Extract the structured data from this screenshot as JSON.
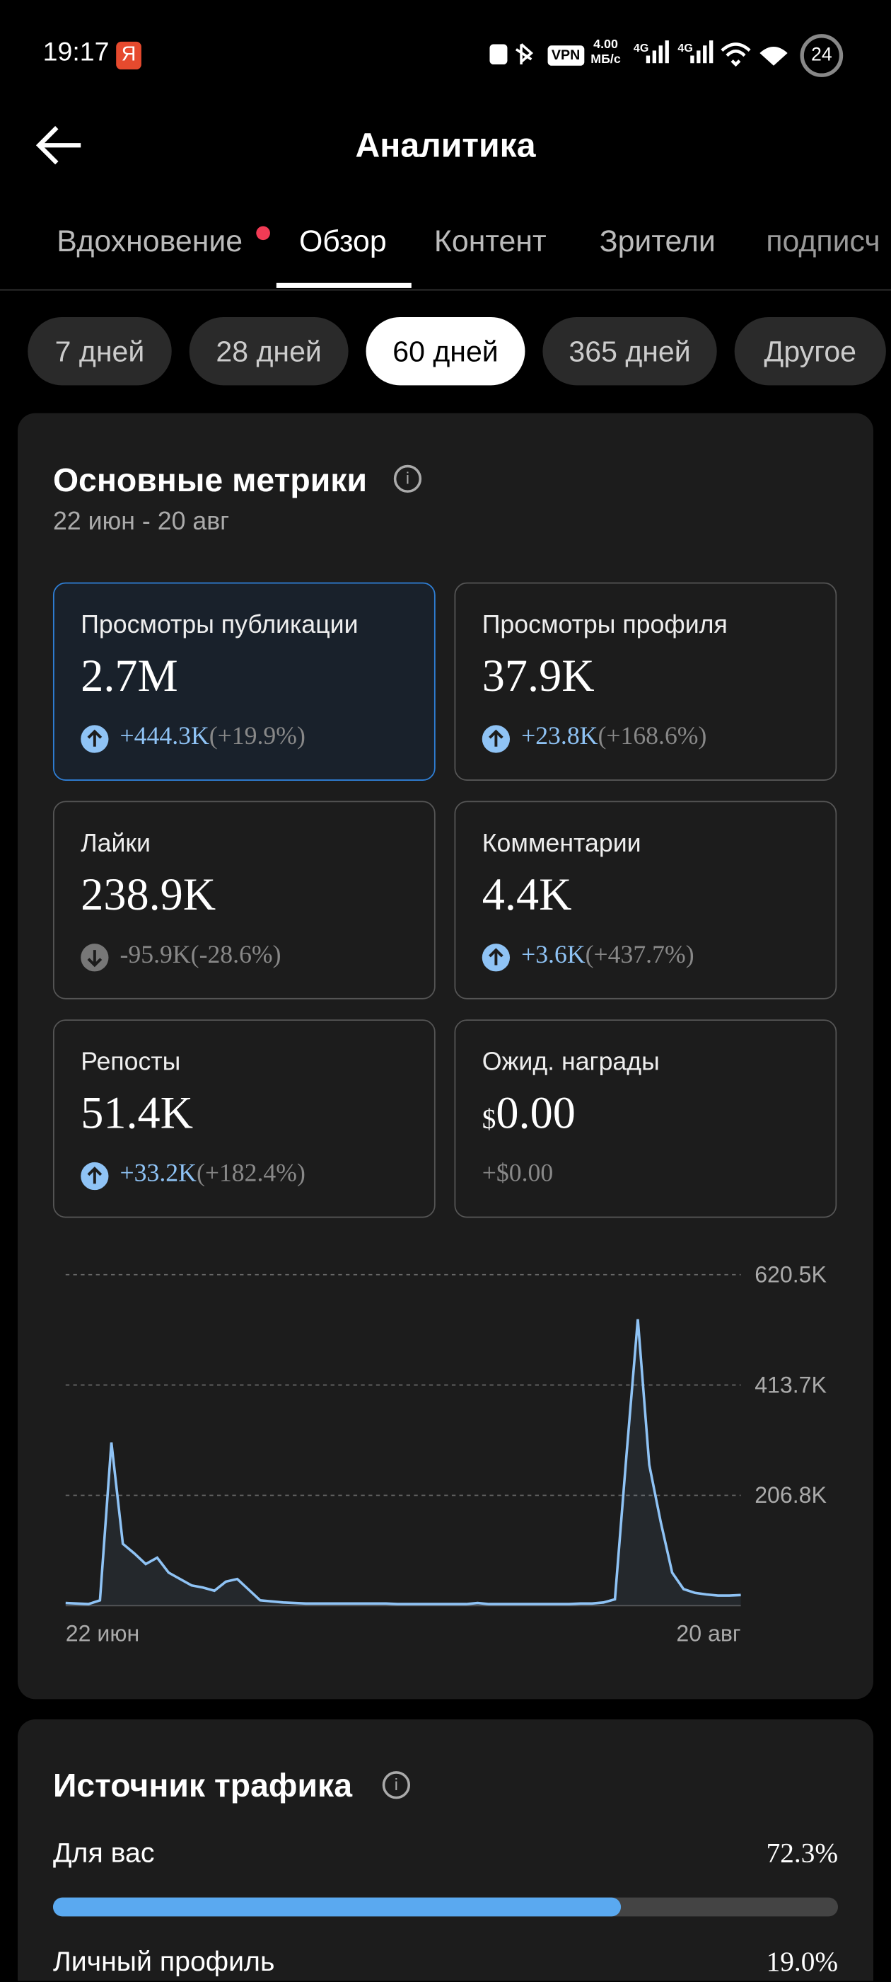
{
  "status_bar": {
    "time": "19:17",
    "badge": "Я",
    "vpn": "VPN",
    "speed": "4.00",
    "speed_unit": "МБ/с",
    "net1": "4G",
    "net2": "4G",
    "battery": "24"
  },
  "header": {
    "title": "Аналитика"
  },
  "tabs": [
    "Вдохновение",
    "Обзор",
    "Контент",
    "Зрители",
    "подписч"
  ],
  "periods": [
    "7 дней",
    "28 дней",
    "60 дней",
    "365 дней",
    "Другое"
  ],
  "metrics_card": {
    "title": "Основные метрики",
    "date_range": "22 июн - 20 авг",
    "metrics": [
      {
        "label": "Просмотры публикации",
        "value": "2.7M",
        "change": "+444.3K",
        "change_pct": "(+19.9%)"
      },
      {
        "label": "Просмотры профиля",
        "value": "37.9K",
        "change": "+23.8K",
        "change_pct": "(+168.6%)"
      },
      {
        "label": "Лайки",
        "value": "238.9K",
        "change": "-95.9K",
        "change_pct": "(-28.6%)"
      },
      {
        "label": "Комментарии",
        "value": "4.4K",
        "change": "+3.6K",
        "change_pct": "(+437.7%)"
      },
      {
        "label": "Репосты",
        "value": "51.4K",
        "change": "+33.2K",
        "change_pct": "(+182.4%)"
      },
      {
        "label": "Ожид. награды",
        "currency": "$",
        "value": "0.00",
        "change": "+$0.00"
      }
    ]
  },
  "chart": {
    "type": "line",
    "color": "#8fc3f5",
    "categories": [
      "22 июн",
      null,
      null,
      null,
      null,
      null,
      null,
      null,
      null,
      null,
      null,
      null,
      null,
      null,
      null,
      null,
      null,
      null,
      null,
      null,
      null,
      null,
      null,
      null,
      null,
      null,
      null,
      null,
      null,
      null,
      null,
      null,
      null,
      null,
      null,
      null,
      null,
      null,
      null,
      null,
      null,
      null,
      null,
      null,
      null,
      null,
      null,
      null,
      null,
      null,
      null,
      null,
      null,
      null,
      null,
      null,
      null,
      null,
      null,
      "20 авг"
    ],
    "values": [
      5000,
      4000,
      3000,
      10000,
      306000,
      116000,
      98000,
      78000,
      90000,
      62000,
      50000,
      38000,
      34000,
      28000,
      45000,
      50000,
      30000,
      10000,
      8000,
      6000,
      5000,
      4000,
      4000,
      4000,
      4000,
      4000,
      4000,
      4000,
      4000,
      3000,
      3000,
      3000,
      3000,
      3000,
      3000,
      3000,
      5000,
      3000,
      3000,
      3000,
      3000,
      3000,
      3000,
      3000,
      3000,
      4000,
      4000,
      6000,
      12000,
      280000,
      537000,
      264000,
      157000,
      62000,
      31000,
      24000,
      21000,
      19000,
      19000,
      20000
    ],
    "ylim": [
      0,
      620500
    ],
    "yticks": [
      {
        "value": 206800,
        "label": "206.8K"
      },
      {
        "value": 413700,
        "label": "413.7K"
      },
      {
        "value": 620500,
        "label": "620.5K"
      }
    ]
  },
  "traffic_card": {
    "title": "Источник трафика",
    "rows": [
      {
        "label": "Для вас",
        "value": 72.3,
        "value_label": "72.3%"
      },
      {
        "label": "Личный профиль",
        "value": 19.0,
        "value_label": "19.0%"
      }
    ]
  }
}
